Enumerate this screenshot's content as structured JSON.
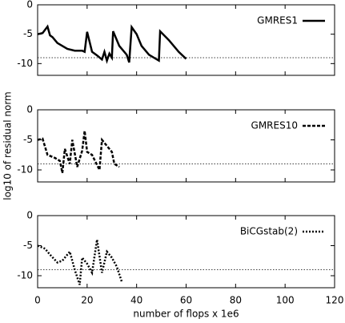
{
  "chart_data": [
    {
      "type": "line",
      "xlim": [
        0,
        120
      ],
      "xticks": [
        0,
        20,
        40,
        60,
        80,
        100,
        120
      ],
      "xtick_labels": false,
      "ylim": [
        -12,
        0
      ],
      "yticks": [
        0,
        -5,
        -10
      ],
      "hline": -9,
      "legend": "upper right",
      "series": [
        {
          "name": "GMRES1",
          "color": "#000000",
          "line_style": "solid",
          "x": [
            0,
            2,
            4,
            5,
            6,
            8,
            10,
            12,
            15,
            18,
            19,
            20,
            22,
            24,
            26,
            27,
            28,
            29,
            30,
            30.5,
            33,
            36,
            37,
            38,
            40,
            42,
            45,
            49,
            49.5,
            53,
            57,
            60
          ],
          "values": [
            -5,
            -4.8,
            -3.7,
            -5.2,
            -5.5,
            -6.5,
            -7,
            -7.5,
            -7.8,
            -7.8,
            -8,
            -4.6,
            -8,
            -8.6,
            -9.3,
            -8,
            -9.5,
            -8.3,
            -9,
            -4.5,
            -7,
            -8.5,
            -9.8,
            -3.8,
            -5,
            -7,
            -8.5,
            -9.5,
            -4.5,
            -6,
            -8,
            -9.2
          ]
        }
      ]
    },
    {
      "type": "line",
      "xlim": [
        0,
        120
      ],
      "xticks": [
        0,
        20,
        40,
        60,
        80,
        100,
        120
      ],
      "xtick_labels": false,
      "ylim": [
        -12,
        0
      ],
      "yticks": [
        0,
        -5,
        -10
      ],
      "hline": -9,
      "legend": "upper right",
      "ylabel": "log10 of residual norm",
      "series": [
        {
          "name": "GMRES10",
          "color": "#000000",
          "line_style": "dashed",
          "x": [
            0,
            2,
            4,
            7,
            9,
            10,
            11,
            13,
            14,
            16,
            18,
            19,
            20,
            22,
            25,
            26,
            28,
            30,
            31,
            33
          ],
          "values": [
            -5,
            -4.8,
            -7.5,
            -8,
            -8.5,
            -10.5,
            -6.5,
            -9,
            -5,
            -9.5,
            -6.8,
            -3.5,
            -7,
            -7.5,
            -10,
            -5,
            -6,
            -7,
            -9,
            -9.5
          ]
        }
      ]
    },
    {
      "type": "line",
      "xlim": [
        0,
        120
      ],
      "xticks": [
        0,
        20,
        40,
        60,
        80,
        100,
        120
      ],
      "xtick_labels": true,
      "ylim": [
        -12,
        0
      ],
      "yticks": [
        0,
        -5,
        -10
      ],
      "hline": -9,
      "legend": "upper right",
      "xlabel": "number of flops x 1e6",
      "series": [
        {
          "name": "BiCGstab(2)",
          "color": "#000000",
          "line_style": "dotted",
          "x": [
            0,
            3,
            5,
            8,
            10,
            13,
            15,
            17,
            18,
            20,
            22,
            24,
            26,
            28,
            30,
            32,
            34
          ],
          "values": [
            -5,
            -5.5,
            -6.5,
            -7.8,
            -7.5,
            -6,
            -9,
            -11.5,
            -7,
            -8,
            -9.5,
            -4,
            -9.5,
            -6,
            -7,
            -8.5,
            -11
          ]
        }
      ]
    }
  ]
}
